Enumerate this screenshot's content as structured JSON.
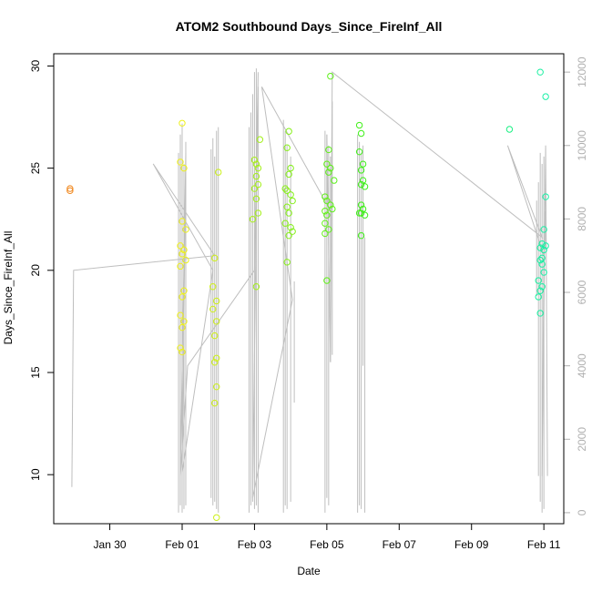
{
  "chart_data": {
    "type": "scatter",
    "title": "ATOM2 Southbound Days_Since_FireInf_All",
    "xlabel": "Date",
    "ylabel": "Days_Since_FireInf_All",
    "x_ticks": [
      "Jan 30",
      "Feb 01",
      "Feb 03",
      "Feb 05",
      "Feb 07",
      "Feb 09",
      "Feb 11"
    ],
    "x_tick_days": [
      30,
      32,
      34,
      36,
      38,
      40,
      42
    ],
    "xlim": [
      28.45,
      42.55
    ],
    "ylim": [
      7.6,
      30.6
    ],
    "y_ticks": [
      10,
      15,
      20,
      25,
      30
    ],
    "y2_ticks": [
      0,
      2000,
      4000,
      6000,
      8000,
      10000,
      12000
    ],
    "y2lim": [
      -300,
      12500
    ],
    "grid": false,
    "colors": {
      "points_start": "#f4a020",
      "points_end": "#20f0b0",
      "line": "#bebebe",
      "right_axis": "#b0b0b0",
      "left_axis": "#000000"
    },
    "points": [
      {
        "x": 28.9,
        "y": 23.9
      },
      {
        "x": 28.9,
        "y": 24.0
      },
      {
        "x": 32.0,
        "y": 27.2
      },
      {
        "x": 31.95,
        "y": 25.3
      },
      {
        "x": 32.05,
        "y": 25.0
      },
      {
        "x": 32.0,
        "y": 22.4
      },
      {
        "x": 32.1,
        "y": 22.0
      },
      {
        "x": 31.95,
        "y": 21.2
      },
      {
        "x": 32.05,
        "y": 21.0
      },
      {
        "x": 32.0,
        "y": 20.8
      },
      {
        "x": 32.1,
        "y": 20.5
      },
      {
        "x": 31.95,
        "y": 20.2
      },
      {
        "x": 32.05,
        "y": 19.0
      },
      {
        "x": 32.0,
        "y": 18.7
      },
      {
        "x": 31.95,
        "y": 17.8
      },
      {
        "x": 32.05,
        "y": 17.5
      },
      {
        "x": 32.0,
        "y": 17.2
      },
      {
        "x": 31.95,
        "y": 16.2
      },
      {
        "x": 32.0,
        "y": 16.0
      },
      {
        "x": 32.9,
        "y": 20.6
      },
      {
        "x": 32.85,
        "y": 19.2
      },
      {
        "x": 32.95,
        "y": 18.5
      },
      {
        "x": 32.85,
        "y": 18.1
      },
      {
        "x": 32.95,
        "y": 17.5
      },
      {
        "x": 32.9,
        "y": 16.8
      },
      {
        "x": 32.95,
        "y": 15.7
      },
      {
        "x": 32.9,
        "y": 15.5
      },
      {
        "x": 33.0,
        "y": 24.8
      },
      {
        "x": 32.95,
        "y": 14.3
      },
      {
        "x": 32.9,
        "y": 13.5
      },
      {
        "x": 32.95,
        "y": 7.9
      },
      {
        "x": 34.15,
        "y": 26.4
      },
      {
        "x": 34.0,
        "y": 25.4
      },
      {
        "x": 34.05,
        "y": 25.2
      },
      {
        "x": 34.1,
        "y": 25.0
      },
      {
        "x": 34.05,
        "y": 24.6
      },
      {
        "x": 34.1,
        "y": 24.2
      },
      {
        "x": 34.0,
        "y": 24.0
      },
      {
        "x": 34.05,
        "y": 23.5
      },
      {
        "x": 34.1,
        "y": 22.8
      },
      {
        "x": 33.95,
        "y": 22.5
      },
      {
        "x": 34.05,
        "y": 19.2
      },
      {
        "x": 34.95,
        "y": 26.8
      },
      {
        "x": 34.9,
        "y": 26.0
      },
      {
        "x": 35.0,
        "y": 25.0
      },
      {
        "x": 34.95,
        "y": 24.7
      },
      {
        "x": 34.85,
        "y": 24.0
      },
      {
        "x": 34.9,
        "y": 23.9
      },
      {
        "x": 35.0,
        "y": 23.7
      },
      {
        "x": 35.05,
        "y": 23.4
      },
      {
        "x": 34.9,
        "y": 23.1
      },
      {
        "x": 34.95,
        "y": 22.8
      },
      {
        "x": 34.85,
        "y": 22.3
      },
      {
        "x": 35.0,
        "y": 22.1
      },
      {
        "x": 35.05,
        "y": 21.9
      },
      {
        "x": 34.95,
        "y": 21.7
      },
      {
        "x": 34.9,
        "y": 20.4
      },
      {
        "x": 36.1,
        "y": 29.5
      },
      {
        "x": 36.05,
        "y": 25.9
      },
      {
        "x": 36.0,
        "y": 25.2
      },
      {
        "x": 36.1,
        "y": 25.0
      },
      {
        "x": 36.05,
        "y": 24.8
      },
      {
        "x": 35.95,
        "y": 23.6
      },
      {
        "x": 36.0,
        "y": 23.4
      },
      {
        "x": 36.1,
        "y": 23.2
      },
      {
        "x": 36.15,
        "y": 23.0
      },
      {
        "x": 35.95,
        "y": 22.9
      },
      {
        "x": 36.0,
        "y": 22.7
      },
      {
        "x": 35.95,
        "y": 22.3
      },
      {
        "x": 36.05,
        "y": 22.0
      },
      {
        "x": 35.95,
        "y": 21.8
      },
      {
        "x": 36.0,
        "y": 19.5
      },
      {
        "x": 36.2,
        "y": 24.4
      },
      {
        "x": 36.9,
        "y": 27.1
      },
      {
        "x": 36.95,
        "y": 26.7
      },
      {
        "x": 36.9,
        "y": 25.8
      },
      {
        "x": 37.0,
        "y": 25.2
      },
      {
        "x": 36.95,
        "y": 24.9
      },
      {
        "x": 37.0,
        "y": 24.4
      },
      {
        "x": 36.95,
        "y": 24.2
      },
      {
        "x": 37.05,
        "y": 24.1
      },
      {
        "x": 36.95,
        "y": 23.2
      },
      {
        "x": 37.0,
        "y": 23.0
      },
      {
        "x": 36.95,
        "y": 22.8
      },
      {
        "x": 37.05,
        "y": 22.7
      },
      {
        "x": 36.9,
        "y": 22.8
      },
      {
        "x": 36.95,
        "y": 21.7
      },
      {
        "x": 41.05,
        "y": 26.9
      },
      {
        "x": 41.9,
        "y": 29.7
      },
      {
        "x": 42.05,
        "y": 28.5
      },
      {
        "x": 42.05,
        "y": 23.6
      },
      {
        "x": 42.0,
        "y": 22.0
      },
      {
        "x": 41.95,
        "y": 21.3
      },
      {
        "x": 42.05,
        "y": 21.2
      },
      {
        "x": 41.9,
        "y": 21.1
      },
      {
        "x": 42.0,
        "y": 21.0
      },
      {
        "x": 41.95,
        "y": 20.6
      },
      {
        "x": 41.9,
        "y": 20.5
      },
      {
        "x": 41.95,
        "y": 20.3
      },
      {
        "x": 42.0,
        "y": 19.9
      },
      {
        "x": 41.85,
        "y": 19.5
      },
      {
        "x": 41.95,
        "y": 19.2
      },
      {
        "x": 41.9,
        "y": 19.0
      },
      {
        "x": 41.85,
        "y": 18.7
      },
      {
        "x": 41.9,
        "y": 17.9
      }
    ],
    "line_y2": [
      [
        28.95,
        700
      ],
      [
        29.0,
        6600
      ],
      [
        32.9,
        7000
      ],
      [
        31.2,
        9500
      ],
      [
        32.85,
        6600
      ],
      [
        32.0,
        1100
      ],
      [
        32.1,
        9800
      ],
      [
        31.95,
        1000
      ],
      [
        32.15,
        4000
      ],
      [
        34.0,
        6600
      ],
      [
        34.1,
        12000
      ],
      [
        33.95,
        400
      ],
      [
        35.05,
        5800
      ],
      [
        34.2,
        11600
      ],
      [
        36.0,
        8400
      ],
      [
        36.0,
        10300
      ],
      [
        36.1,
        4100
      ],
      [
        36.15,
        12000
      ],
      [
        41.95,
        7500
      ],
      [
        41.0,
        10000
      ],
      [
        42.0,
        7000
      ],
      [
        41.95,
        1000
      ],
      [
        42.05,
        10000
      ],
      [
        42.1,
        1000
      ]
    ],
    "line_spikes": [
      [
        31.9,
        0,
        9800
      ],
      [
        31.95,
        200,
        10300
      ],
      [
        32.0,
        0,
        10600
      ],
      [
        32.05,
        100,
        9500
      ],
      [
        32.1,
        200,
        10100
      ],
      [
        32.8,
        400,
        9900
      ],
      [
        32.85,
        200,
        10200
      ],
      [
        32.9,
        300,
        9700
      ],
      [
        32.95,
        100,
        10400
      ],
      [
        33.0,
        0,
        10500
      ],
      [
        33.85,
        0,
        10500
      ],
      [
        33.9,
        200,
        10900
      ],
      [
        33.95,
        300,
        11400
      ],
      [
        34.0,
        100,
        12000
      ],
      [
        34.05,
        200,
        12100
      ],
      [
        34.1,
        0,
        11600
      ],
      [
        34.8,
        0,
        10700
      ],
      [
        34.85,
        200,
        10400
      ],
      [
        34.9,
        100,
        10000
      ],
      [
        35.0,
        300,
        9700
      ],
      [
        35.1,
        3000,
        6300
      ],
      [
        35.95,
        0,
        10400
      ],
      [
        36.0,
        400,
        10300
      ],
      [
        36.05,
        200,
        10000
      ],
      [
        36.1,
        4100,
        9700
      ],
      [
        36.15,
        4300,
        11200
      ],
      [
        36.85,
        0,
        10300
      ],
      [
        36.9,
        200,
        10100
      ],
      [
        36.95,
        100,
        9800
      ],
      [
        37.0,
        4000,
        10000
      ],
      [
        37.05,
        0,
        7500
      ],
      [
        41.8,
        5900,
        8500
      ],
      [
        41.85,
        1000,
        9000
      ],
      [
        41.9,
        300,
        9800
      ],
      [
        41.95,
        0,
        9500
      ],
      [
        42.0,
        100,
        9700
      ],
      [
        42.05,
        7200,
        8200
      ]
    ]
  }
}
